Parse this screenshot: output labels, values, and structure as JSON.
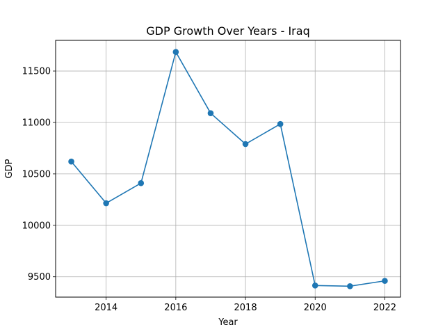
{
  "chart_data": {
    "type": "line",
    "title": "GDP Growth Over Years - Iraq",
    "xlabel": "Year",
    "ylabel": "GDP",
    "x": [
      2013,
      2014,
      2015,
      2016,
      2017,
      2018,
      2019,
      2020,
      2021,
      2022
    ],
    "series": [
      {
        "values": [
          10620,
          10215,
          10410,
          11685,
          11090,
          10790,
          10985,
          9415,
          9408,
          9460
        ],
        "color": "#1f77b4",
        "marker": "circle"
      }
    ],
    "xlim": [
      2012.55,
      2022.45
    ],
    "ylim": [
      9302,
      11798
    ],
    "xticks": [
      2014,
      2016,
      2018,
      2020,
      2022
    ],
    "yticks": [
      9500,
      10000,
      10500,
      11000,
      11500
    ],
    "grid": true,
    "legend": "none"
  }
}
